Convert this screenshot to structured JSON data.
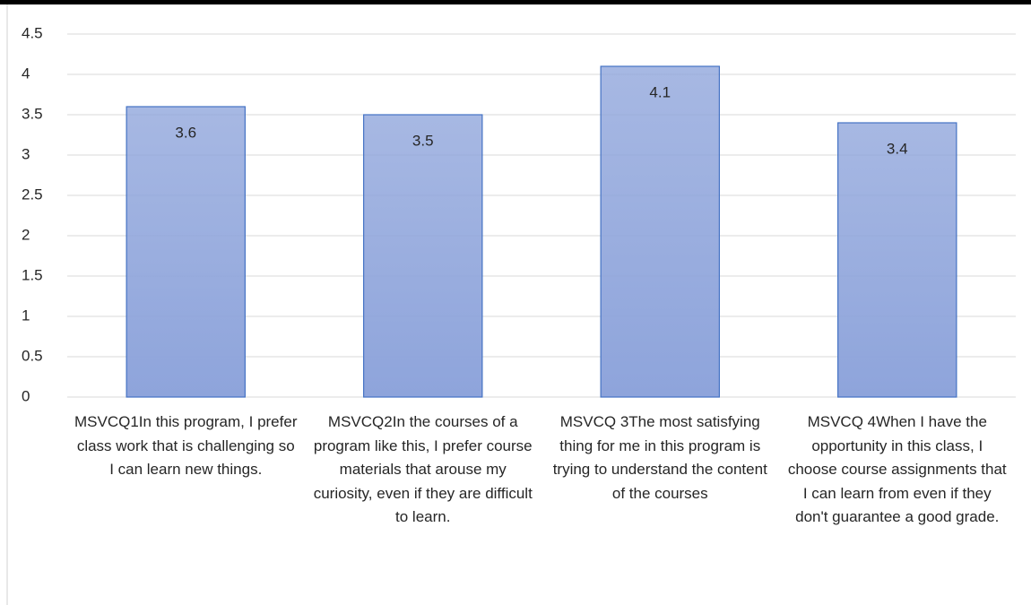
{
  "chart_data": {
    "type": "bar",
    "categories": [
      "MSVCQ1In this program, I prefer class work that is challenging so I can learn new things.",
      "MSVCQ2In the courses of a program like this, I prefer course materials that arouse my curiosity, even if they are difficult to learn.",
      "MSVCQ 3The most satisfying thing for me in this program is trying to understand the content of the courses",
      "MSVCQ 4When I have the opportunity in this class, I choose course assignments that I can learn from even if they don't guarantee a good grade."
    ],
    "values": [
      3.6,
      3.5,
      4.1,
      3.4
    ],
    "color": "#8ea4db",
    "edge_color": "#4472c4",
    "ylim": [
      0,
      4.5
    ],
    "yticks": [
      0,
      0.5,
      1,
      1.5,
      2,
      2.5,
      3,
      3.5,
      4,
      4.5
    ],
    "grid": true,
    "data_labels": true
  }
}
